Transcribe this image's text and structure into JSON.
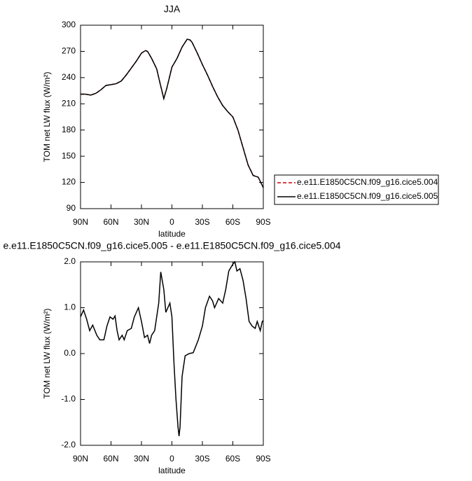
{
  "chart_data": [
    {
      "type": "line",
      "title": "JJA",
      "xlabel": "latitude",
      "ylabel": "TOM net LW flux (W/m²)",
      "x": [
        90,
        85,
        80,
        75,
        70,
        65,
        60,
        55,
        50,
        45,
        40,
        35,
        30,
        26,
        24,
        20,
        15,
        12,
        8,
        5,
        0,
        -5,
        -10,
        -15,
        -18,
        -20,
        -25,
        -30,
        -35,
        -40,
        -45,
        -50,
        -55,
        -60,
        -65,
        -70,
        -75,
        -80,
        -85,
        -90
      ],
      "series": [
        {
          "name": "e.e11.E1850C5CN.f09_g16.cice5.004",
          "color": "#cc0000",
          "style": "dashed",
          "values": [
            221,
            221,
            220,
            222,
            226,
            231,
            232,
            233,
            236,
            243,
            251,
            259,
            268,
            271,
            270,
            262,
            250,
            235,
            216,
            228,
            252,
            262,
            275,
            284,
            283,
            280,
            268,
            255,
            243,
            230,
            218,
            208,
            201,
            195,
            180,
            160,
            140,
            128,
            126,
            114
          ]
        },
        {
          "name": "e.e11.E1850C5CN.f09_g16.cice5.005",
          "color": "#000000",
          "style": "solid",
          "values": [
            221,
            221,
            220,
            222,
            226,
            231,
            232,
            233,
            236,
            243,
            251,
            259,
            268,
            271,
            270,
            262,
            250,
            235,
            216,
            228,
            252,
            262,
            275,
            284,
            283,
            280,
            268,
            255,
            243,
            230,
            218,
            208,
            201,
            195,
            180,
            160,
            140,
            128,
            126,
            114
          ]
        }
      ],
      "xlim": [
        90,
        -90
      ],
      "xticks": [
        {
          "value": 90,
          "label": "90N"
        },
        {
          "value": 60,
          "label": "60N"
        },
        {
          "value": 30,
          "label": "30N"
        },
        0,
        {
          "value": -30,
          "label": "30S"
        },
        {
          "value": -60,
          "label": "60S"
        },
        {
          "value": -90,
          "label": "90S"
        }
      ],
      "ylim": [
        90,
        300
      ],
      "yticks": [
        90,
        120,
        150,
        180,
        210,
        240,
        270,
        300
      ],
      "legend": "outside-right"
    },
    {
      "type": "line",
      "title": "e.e11.E1850C5CN.f09_g16.cice5.005 - e.e11.E1850C5CN.f09_g16.cice5.004",
      "xlabel": "latitude",
      "ylabel": "TOM net LW flux (W/m²)",
      "x": [
        90,
        87,
        84,
        81,
        78,
        74,
        71,
        67,
        64,
        61,
        58,
        56,
        54,
        52,
        49,
        47,
        44,
        40,
        37,
        33,
        30,
        27,
        24,
        22,
        20,
        17,
        13,
        11,
        8,
        6,
        4,
        2,
        0,
        -2,
        -4,
        -6,
        -7,
        -8,
        -10,
        -13,
        -17,
        -21,
        -26,
        -30,
        -33,
        -37,
        -40,
        -42,
        -46,
        -50,
        -53,
        -56,
        -60,
        -62,
        -64,
        -67,
        -70,
        -73,
        -76,
        -79,
        -82,
        -84,
        -87,
        -89,
        -90
      ],
      "series": [
        {
          "color": "#000000",
          "style": "solid",
          "values": [
            0.8,
            0.95,
            0.75,
            0.5,
            0.62,
            0.4,
            0.3,
            0.3,
            0.6,
            0.8,
            0.75,
            0.82,
            0.5,
            0.3,
            0.4,
            0.3,
            0.5,
            0.55,
            0.8,
            1.0,
            0.7,
            0.35,
            0.4,
            0.22,
            0.4,
            0.5,
            1.1,
            1.78,
            1.4,
            0.9,
            1.0,
            1.1,
            0.8,
            -0.2,
            -1.0,
            -1.6,
            -1.8,
            -1.6,
            -0.5,
            -0.05,
            0.0,
            0.02,
            0.3,
            0.6,
            1.0,
            1.25,
            1.15,
            1.0,
            1.2,
            1.1,
            1.4,
            1.8,
            1.95,
            2.0,
            1.8,
            1.85,
            1.6,
            1.2,
            0.7,
            0.6,
            0.55,
            0.7,
            0.5,
            0.7,
            0.72
          ]
        }
      ],
      "xlim": [
        90,
        -90
      ],
      "xticks": [
        {
          "value": 90,
          "label": "90N"
        },
        {
          "value": 60,
          "label": "60N"
        },
        {
          "value": 30,
          "label": "30N"
        },
        0,
        {
          "value": -30,
          "label": "30S"
        },
        {
          "value": -60,
          "label": "60S"
        },
        {
          "value": -90,
          "label": "90S"
        }
      ],
      "ylim": [
        -2,
        2
      ],
      "yticks": [
        {
          "value": -2,
          "label": "-2.0"
        },
        {
          "value": -1,
          "label": "-1.0"
        },
        {
          "value": 0,
          "label": "0.0"
        },
        {
          "value": 1,
          "label": "1.0"
        },
        {
          "value": 2,
          "label": "2.0"
        }
      ]
    }
  ]
}
